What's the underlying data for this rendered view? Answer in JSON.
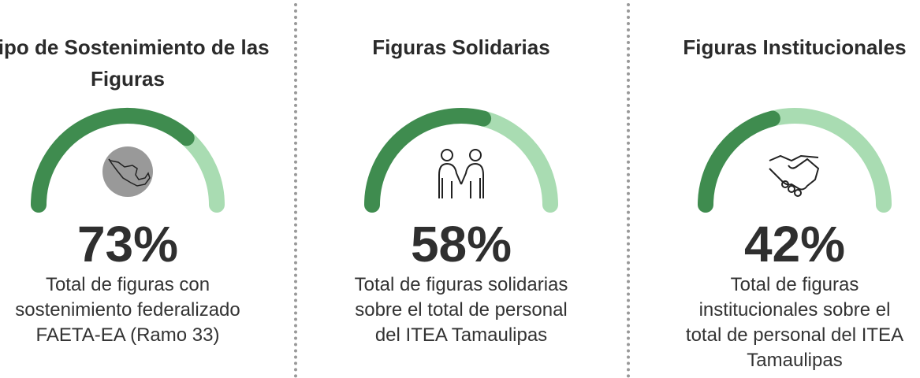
{
  "chart_data": [
    {
      "type": "gauge",
      "title": "Tipo de Sostenimiento de las Figuras",
      "values": [
        73
      ],
      "value_labels": [
        "73%"
      ],
      "ylim": [
        0,
        100
      ],
      "colors": [
        "#3f8c4f",
        "#a9dcb2"
      ],
      "description": "Total de figuras con sostenimiento federalizado FAETA-EA (Ramo 33)"
    },
    {
      "type": "gauge",
      "title": "Figuras Solidarias",
      "values": [
        58
      ],
      "value_labels": [
        "58%"
      ],
      "ylim": [
        0,
        100
      ],
      "colors": [
        "#3f8c4f",
        "#a9dcb2"
      ],
      "description": "Total de figuras solidarias sobre el total de personal del ITEA Tamaulipas"
    },
    {
      "type": "gauge",
      "title": "Figuras Institucionales",
      "values": [
        42
      ],
      "value_labels": [
        "42%"
      ],
      "ylim": [
        0,
        100
      ],
      "colors": [
        "#3f8c4f",
        "#a9dcb2"
      ],
      "description": "Total de figuras institucionales sobre el total de personal del ITEA Tamaulipas"
    }
  ]
}
